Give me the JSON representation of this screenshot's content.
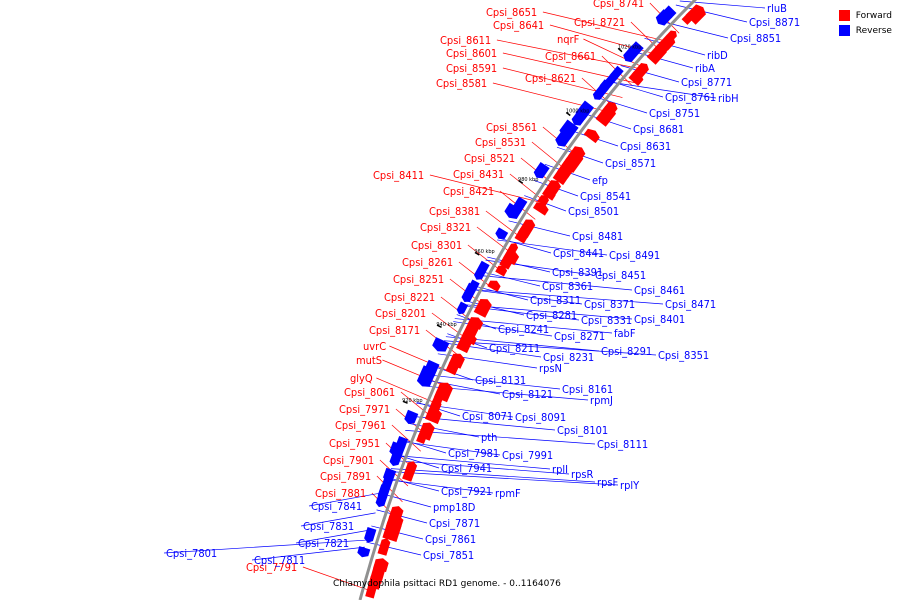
{
  "legend": {
    "forward_label": "Forward",
    "reverse_label": "Reverse",
    "forward_color": "#ff0000",
    "reverse_color": "#0000ff"
  },
  "caption": "Chlamydophila psittaci RD1 genome. - 0..1164076",
  "backbone_color": "#909090",
  "ticks": [
    "1040 kbp",
    "1020 kbp",
    "1000 kbp",
    "980 kbp",
    "960 kbp",
    "940 kbp",
    "920 kbp"
  ],
  "forward_genes": [
    "Cpsi_8741",
    "Cpsi_8651",
    "Cpsi_8721",
    "Cpsi_8641",
    "nqrF",
    "Cpsi_8611",
    "Cpsi_8661",
    "Cpsi_8601",
    "Cpsi_8591",
    "Cpsi_8621",
    "Cpsi_8581",
    "Cpsi_8561",
    "Cpsi_8531",
    "Cpsi_8521",
    "Cpsi_8411",
    "Cpsi_8431",
    "Cpsi_8421",
    "Cpsi_8381",
    "Cpsi_8321",
    "Cpsi_8301",
    "Cpsi_8261",
    "Cpsi_8251",
    "Cpsi_8221",
    "Cpsi_8201",
    "Cpsi_8171",
    "uvrC",
    "mutS",
    "glyQ",
    "Cpsi_8061",
    "Cpsi_7971",
    "Cpsi_7961",
    "Cpsi_7951",
    "Cpsi_7901",
    "Cpsi_7891",
    "Cpsi_7881",
    "Cpsi_7791"
  ],
  "reverse_genes": [
    "rluB",
    "Cpsi_8871",
    "Cpsi_8851",
    "ribD",
    "ribA",
    "Cpsi_8771",
    "Cpsi_8761",
    "ribH",
    "Cpsi_8751",
    "Cpsi_8681",
    "Cpsi_8631",
    "Cpsi_8571",
    "efp",
    "Cpsi_8541",
    "Cpsi_8501",
    "Cpsi_8481",
    "Cpsi_8441",
    "Cpsi_8491",
    "Cpsi_8451",
    "Cpsi_8391",
    "Cpsi_8361",
    "Cpsi_8461",
    "Cpsi_8371",
    "Cpsi_8471",
    "Cpsi_8311",
    "Cpsi_8331",
    "Cpsi_8281",
    "Cpsi_8401",
    "Cpsi_8241",
    "fabF",
    "Cpsi_8271",
    "Cpsi_8211",
    "Cpsi_8291",
    "Cpsi_8231",
    "Cpsi_8351",
    "rpsN",
    "Cpsi_8131",
    "Cpsi_8161",
    "Cpsi_8121",
    "rpmJ",
    "Cpsi_8071",
    "Cpsi_8091",
    "Cpsi_8101",
    "pth",
    "Cpsi_8111",
    "Cpsi_7981",
    "Cpsi_7991",
    "rplI",
    "rpsR",
    "rpsF",
    "rplY",
    "Cpsi_7941",
    "Cpsi_7921",
    "rpmF",
    "pmp18D",
    "Cpsi_7841",
    "Cpsi_7871",
    "Cpsi_7831",
    "Cpsi_7861",
    "Cpsi_7821",
    "Cpsi_7851",
    "Cpsi_7801",
    "Cpsi_7811"
  ]
}
